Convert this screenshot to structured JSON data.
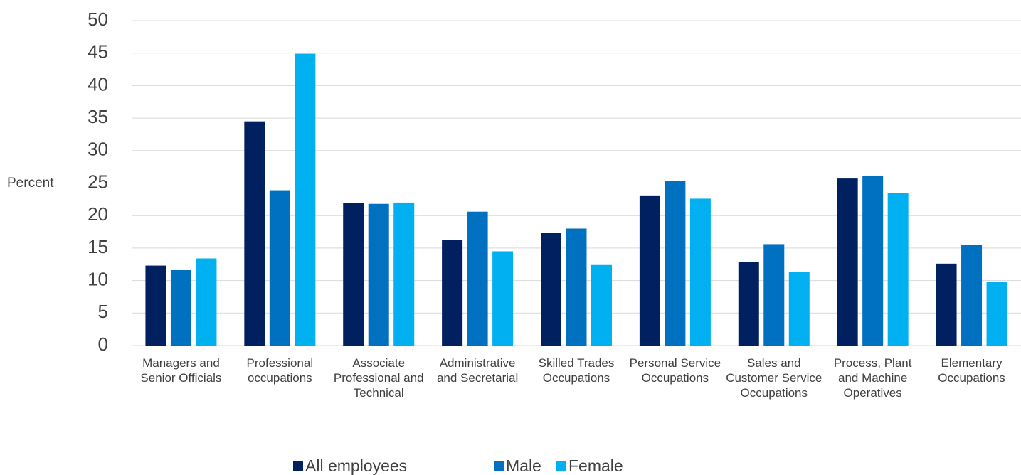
{
  "chart_data": {
    "type": "bar",
    "y_label": "Percent",
    "categories": [
      "Managers and Senior Officials",
      "Professional occupations",
      "Associate Professional and Technical",
      "Administrative and Secretarial",
      "Skilled Trades Occupations",
      "Personal Service Occupations",
      "Sales and Customer Service Occupations",
      "Process, Plant and Machine Operatives",
      "Elementary Occupations"
    ],
    "series": [
      {
        "name": "All employees",
        "color": "#002060",
        "values": [
          12.3,
          34.5,
          21.9,
          16.2,
          17.3,
          23.1,
          12.8,
          25.7,
          12.6
        ]
      },
      {
        "name": "Male",
        "color": "#0070c0",
        "values": [
          11.6,
          23.9,
          21.8,
          20.6,
          18.0,
          25.3,
          15.6,
          26.1,
          15.5
        ]
      },
      {
        "name": "Female",
        "color": "#00b0f0",
        "values": [
          13.4,
          44.9,
          22.0,
          14.5,
          12.5,
          22.6,
          11.3,
          23.5,
          9.8
        ]
      }
    ],
    "ylim": [
      0,
      50
    ],
    "yticks": [
      0,
      5,
      10,
      15,
      20,
      25,
      30,
      35,
      40,
      45,
      50
    ],
    "grid": true,
    "legend": "bottom"
  }
}
